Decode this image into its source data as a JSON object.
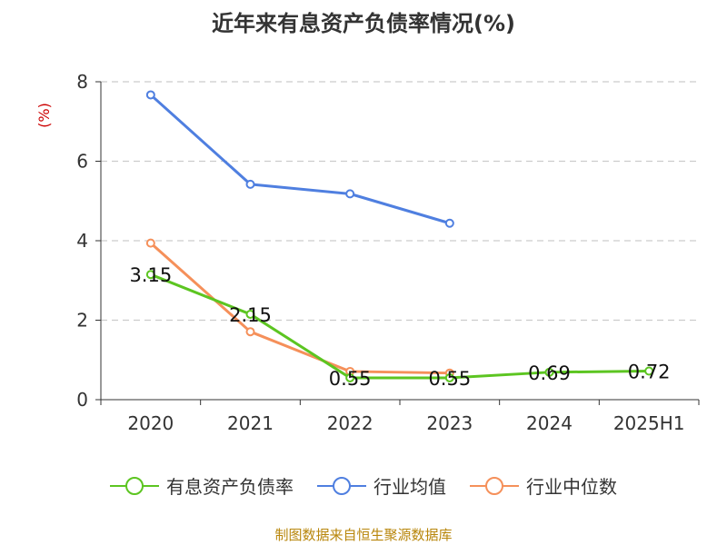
{
  "title": "近年来有息资产负债率情况(%)",
  "source": "制图数据来自恒生聚源数据库",
  "colors": {
    "series": [
      "#5cc521",
      "#4f7fe0",
      "#f5905a"
    ],
    "axis": "#333333",
    "grid": "#cccccc",
    "ylabel": "#cc0000"
  },
  "chart_data": {
    "type": "line",
    "title": "近年来有息资产负债率情况(%)",
    "ylabel": "(%)",
    "xlabel": "",
    "categories": [
      "2020",
      "2021",
      "2022",
      "2023",
      "2024",
      "2025H1"
    ],
    "ylim": [
      0,
      8
    ],
    "yticks": [
      0,
      2,
      4,
      6,
      8
    ],
    "grid": true,
    "legend_position": "bottom",
    "series": [
      {
        "name": "有息资产负债率",
        "values": [
          3.15,
          2.15,
          0.55,
          0.55,
          0.69,
          0.72
        ],
        "labels": [
          "3.15",
          "2.15",
          "0.55",
          "0.55",
          "0.69",
          "0.72"
        ]
      },
      {
        "name": "行业均值",
        "values": [
          7.67,
          5.42,
          5.18,
          4.44,
          null,
          null
        ]
      },
      {
        "name": "行业中位数",
        "values": [
          3.94,
          1.71,
          0.71,
          0.67,
          null,
          null
        ]
      }
    ]
  }
}
